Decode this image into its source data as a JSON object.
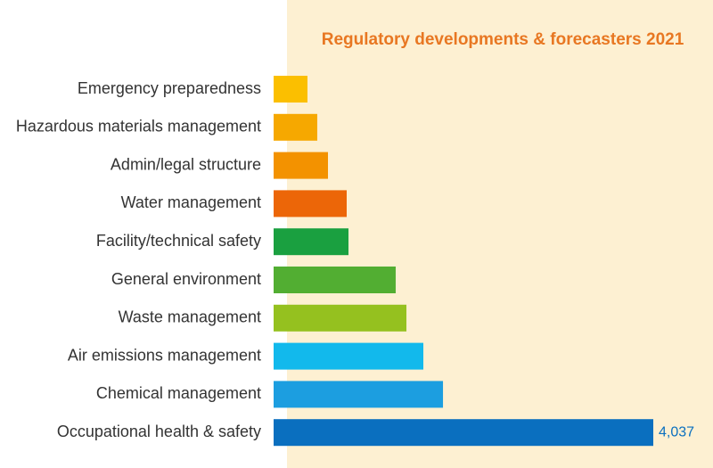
{
  "chart_data": {
    "type": "barh",
    "title": "Regulatory developments & forecasters 2021",
    "categories": [
      "Emergency preparedness",
      "Hazardous materials management",
      "Admin/legal structure",
      "Water management",
      "Facility/technical safety",
      "General environment",
      "Waste management",
      "Air emissions management",
      "Chemical management",
      "Occupational health & safety"
    ],
    "values": [
      360,
      464,
      578,
      777,
      796,
      1298,
      1412,
      1592,
      1801,
      4037
    ],
    "value_labels": [
      null,
      null,
      null,
      null,
      null,
      null,
      null,
      null,
      null,
      "4,037"
    ],
    "colors": [
      "#fbbf00",
      "#f6a800",
      "#f39200",
      "#ec6608",
      "#1aa040",
      "#52ae32",
      "#95c11f",
      "#12b9ec",
      "#1c9ee0",
      "#0a6fbf"
    ]
  }
}
